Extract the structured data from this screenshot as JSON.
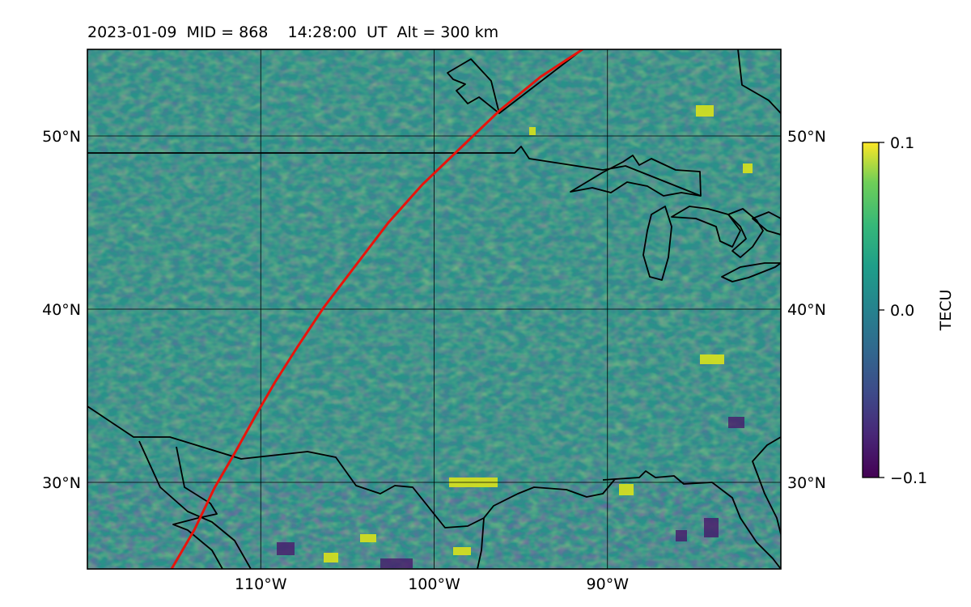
{
  "title": "2023-01-09  MID = 868    14:28:00  UT  Alt = 300 km",
  "map": {
    "lat_range": [
      25,
      55
    ],
    "lon_range": [
      -120,
      -80
    ],
    "lat_ticks": [
      {
        "value": 30,
        "label": "30°N"
      },
      {
        "value": 40,
        "label": "40°N"
      },
      {
        "value": 50,
        "label": "50°N"
      }
    ],
    "lon_ticks": [
      {
        "value": -110,
        "label": "110°W"
      },
      {
        "value": -100,
        "label": "100°W"
      },
      {
        "value": -90,
        "label": "90°W"
      }
    ],
    "track_color": "#e8140c",
    "coastline_color": "#000000"
  },
  "colorbar": {
    "label": "TECU",
    "colormap": "viridis",
    "range": [
      -0.1,
      0.1
    ],
    "ticks": [
      {
        "value": 0.1,
        "label": "0.1"
      },
      {
        "value": 0.0,
        "label": "0.0"
      },
      {
        "value": -0.1,
        "label": "−0.1"
      }
    ]
  }
}
